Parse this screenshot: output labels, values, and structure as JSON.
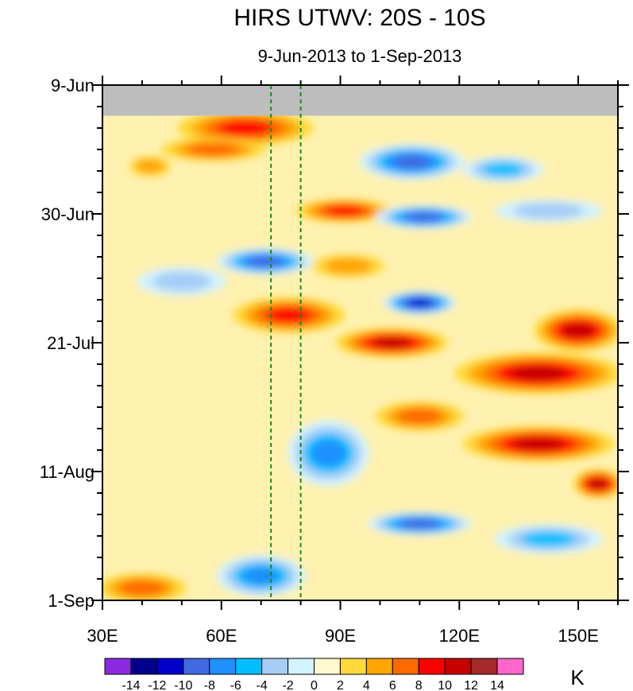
{
  "chart_data": {
    "type": "heatmap",
    "title": "HIRS UTWV: 20S - 10S",
    "subtitle": "9-Jun-2013 to 1-Sep-2013",
    "xlabel": "",
    "ylabel": "",
    "xlim": [
      30,
      160
    ],
    "ylim_days": [
      0,
      84
    ],
    "x_ticks": [
      {
        "value": 30,
        "label": "30E"
      },
      {
        "value": 60,
        "label": "60E"
      },
      {
        "value": 90,
        "label": "90E"
      },
      {
        "value": 120,
        "label": "120E"
      },
      {
        "value": 150,
        "label": "150E"
      }
    ],
    "y_ticks": [
      {
        "value": 0,
        "label": "9-Jun"
      },
      {
        "value": 21,
        "label": "30-Jun"
      },
      {
        "value": 42,
        "label": "21-Jul"
      },
      {
        "value": 63,
        "label": "11-Aug"
      },
      {
        "value": 84,
        "label": "1-Sep"
      }
    ],
    "missing_data_until_day": 5,
    "missing_color": "#bdbdbd",
    "reference_lines_lon": [
      72.5,
      80
    ],
    "reference_line_color": "#1a8a1a",
    "colorbar": {
      "unit": "K",
      "labels": [
        "-14",
        "-12",
        "-10",
        "-8",
        "-6",
        "-4",
        "-2",
        "0",
        "2",
        "4",
        "6",
        "8",
        "10",
        "12",
        "14"
      ],
      "colors": [
        "#8a2be2",
        "#00008b",
        "#0000cd",
        "#4169e1",
        "#1e90ff",
        "#00bfff",
        "#a6cdf5",
        "#d2f2ff",
        "#fffacd",
        "#ffd93a",
        "#ffa500",
        "#ff6a00",
        "#ff0000",
        "#c80000",
        "#a52a2a",
        "#ff66cc"
      ]
    },
    "anomaly_bands": [
      {
        "lon": [
          50,
          82
        ],
        "day": [
          4.5,
          9.5
        ],
        "value": 9
      },
      {
        "lon": [
          46,
          70
        ],
        "day": [
          9,
          12
        ],
        "value": 6
      },
      {
        "lon": [
          38,
          46
        ],
        "day": [
          12,
          14.5
        ],
        "value": 5
      },
      {
        "lon": [
          96,
          120
        ],
        "day": [
          10,
          15
        ],
        "value": -11
      },
      {
        "lon": [
          122,
          140
        ],
        "day": [
          12,
          15.5
        ],
        "value": -6
      },
      {
        "lon": [
          80,
          102
        ],
        "day": [
          19,
          22
        ],
        "value": 9
      },
      {
        "lon": [
          100,
          122
        ],
        "day": [
          20,
          23
        ],
        "value": -10
      },
      {
        "lon": [
          130,
          155
        ],
        "day": [
          19,
          22
        ],
        "value": -5
      },
      {
        "lon": [
          60,
          82
        ],
        "day": [
          27,
          30.5
        ],
        "value": -10
      },
      {
        "lon": [
          40,
          60
        ],
        "day": [
          30,
          34
        ],
        "value": -5
      },
      {
        "lon": [
          84,
          100
        ],
        "day": [
          28,
          31
        ],
        "value": 5
      },
      {
        "lon": [
          102,
          118
        ],
        "day": [
          34,
          37
        ],
        "value": -12
      },
      {
        "lon": [
          64,
          90
        ],
        "day": [
          35,
          40
        ],
        "value": 9
      },
      {
        "lon": [
          90,
          116
        ],
        "day": [
          40,
          44
        ],
        "value": 10
      },
      {
        "lon": [
          140,
          160
        ],
        "day": [
          37,
          43
        ],
        "value": 10
      },
      {
        "lon": [
          120,
          160
        ],
        "day": [
          44,
          50
        ],
        "value": 11
      },
      {
        "lon": [
          78,
          96
        ],
        "day": [
          55,
          65
        ],
        "value": -9
      },
      {
        "lon": [
          100,
          120
        ],
        "day": [
          52,
          56
        ],
        "value": 6
      },
      {
        "lon": [
          122,
          158
        ],
        "day": [
          56,
          61
        ],
        "value": 11
      },
      {
        "lon": [
          150,
          160
        ],
        "day": [
          63,
          67
        ],
        "value": 10
      },
      {
        "lon": [
          98,
          122
        ],
        "day": [
          70,
          73
        ],
        "value": -10
      },
      {
        "lon": [
          130,
          155
        ],
        "day": [
          72,
          76
        ],
        "value": -6
      },
      {
        "lon": [
          60,
          80
        ],
        "day": [
          77,
          83
        ],
        "value": -8
      },
      {
        "lon": [
          30,
          50
        ],
        "day": [
          80,
          84
        ],
        "value": 6
      }
    ]
  }
}
